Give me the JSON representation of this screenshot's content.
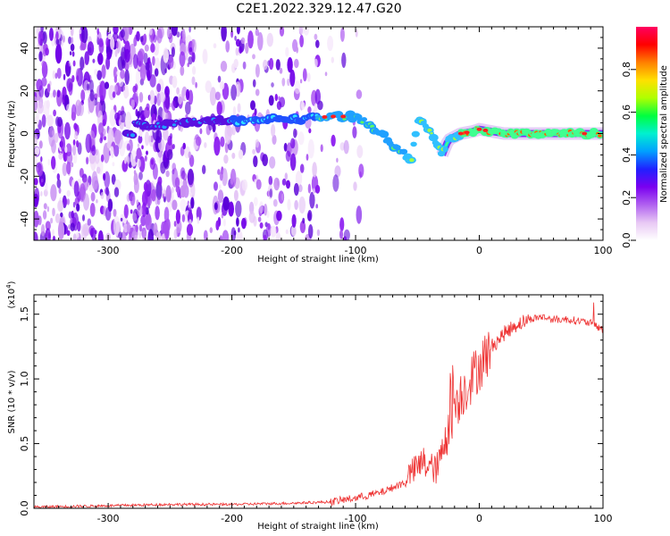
{
  "title": "C2E1.2022.329.12.47.G20",
  "colors": {
    "snr_line": "#ee3333",
    "frame": "#000000"
  },
  "chart_data": [
    {
      "type": "heatmap",
      "name": "spectrogram",
      "xlabel": "Height of straight line (km)",
      "ylabel": "Frequency (Hz)",
      "xlim": [
        -360,
        100
      ],
      "ylim": [
        -50,
        50
      ],
      "x_ticks": [
        -300,
        -200,
        -100,
        0,
        100
      ],
      "y_ticks": [
        -40,
        -20,
        0,
        20,
        40
      ],
      "colorbar": {
        "label": "Normalized spectral amplitude",
        "range": [
          0.0,
          1.0
        ],
        "ticks": [
          "0.0",
          "0.2",
          "0.4",
          "0.6",
          "0.8"
        ],
        "colormap": [
          "#ffffff",
          "#e8c8f4",
          "#b060f0",
          "#7a00f0",
          "#2020ff",
          "#00a0ff",
          "#00f0d0",
          "#00ff40",
          "#b0ff00",
          "#ffe000",
          "#ff8000",
          "#ff0000",
          "#ff0060"
        ]
      },
      "ridge": [
        {
          "x": -280,
          "f": 4
        },
        {
          "x": -260,
          "f": 4
        },
        {
          "x": -240,
          "f": 5
        },
        {
          "x": -220,
          "f": 6
        },
        {
          "x": -200,
          "f": 6
        },
        {
          "x": -180,
          "f": 6
        },
        {
          "x": -160,
          "f": 7
        },
        {
          "x": -140,
          "f": 7
        },
        {
          "x": -120,
          "f": 8
        },
        {
          "x": -100,
          "f": 8
        },
        {
          "x": -90,
          "f": 5
        },
        {
          "x": -80,
          "f": 0
        },
        {
          "x": -70,
          "f": -5
        },
        {
          "x": -60,
          "f": -10
        },
        {
          "x": -55,
          "f": -14
        },
        {
          "x": -50,
          "f": 6
        },
        {
          "x": -40,
          "f": 2
        },
        {
          "x": -30,
          "f": -10
        },
        {
          "x": -25,
          "f": -3
        },
        {
          "x": -15,
          "f": 0
        },
        {
          "x": -5,
          "f": 1
        },
        {
          "x": 0,
          "f": 2
        },
        {
          "x": 20,
          "f": 0
        },
        {
          "x": 50,
          "f": 0
        },
        {
          "x": 80,
          "f": 0
        },
        {
          "x": 100,
          "f": 0
        }
      ]
    },
    {
      "type": "line",
      "name": "snr",
      "xlabel": "Height of straight line (km)",
      "ylabel": "SNR (10 * v/v)",
      "multiplier": "(x10",
      "multiplier_exp": "4",
      "multiplier_close": ")",
      "xlim": [
        -360,
        100
      ],
      "ylim": [
        0,
        1.65
      ],
      "x_ticks": [
        -300,
        -200,
        -100,
        0,
        100
      ],
      "y_ticks": [
        "0.0",
        "0.5",
        "1.0",
        "1.5"
      ],
      "envelope_x": [
        -360,
        -300,
        -250,
        -200,
        -150,
        -120,
        -100,
        -80,
        -60,
        -45,
        -35,
        -30,
        -25,
        -20,
        -10,
        0,
        10,
        20,
        30,
        40,
        50,
        60,
        70,
        80,
        90,
        100
      ],
      "envelope_y": [
        0.01,
        0.02,
        0.03,
        0.03,
        0.04,
        0.05,
        0.08,
        0.12,
        0.2,
        0.3,
        0.25,
        0.35,
        0.6,
        0.8,
        0.95,
        1.1,
        1.25,
        1.35,
        1.42,
        1.46,
        1.48,
        1.46,
        1.46,
        1.45,
        1.43,
        1.38
      ]
    }
  ]
}
